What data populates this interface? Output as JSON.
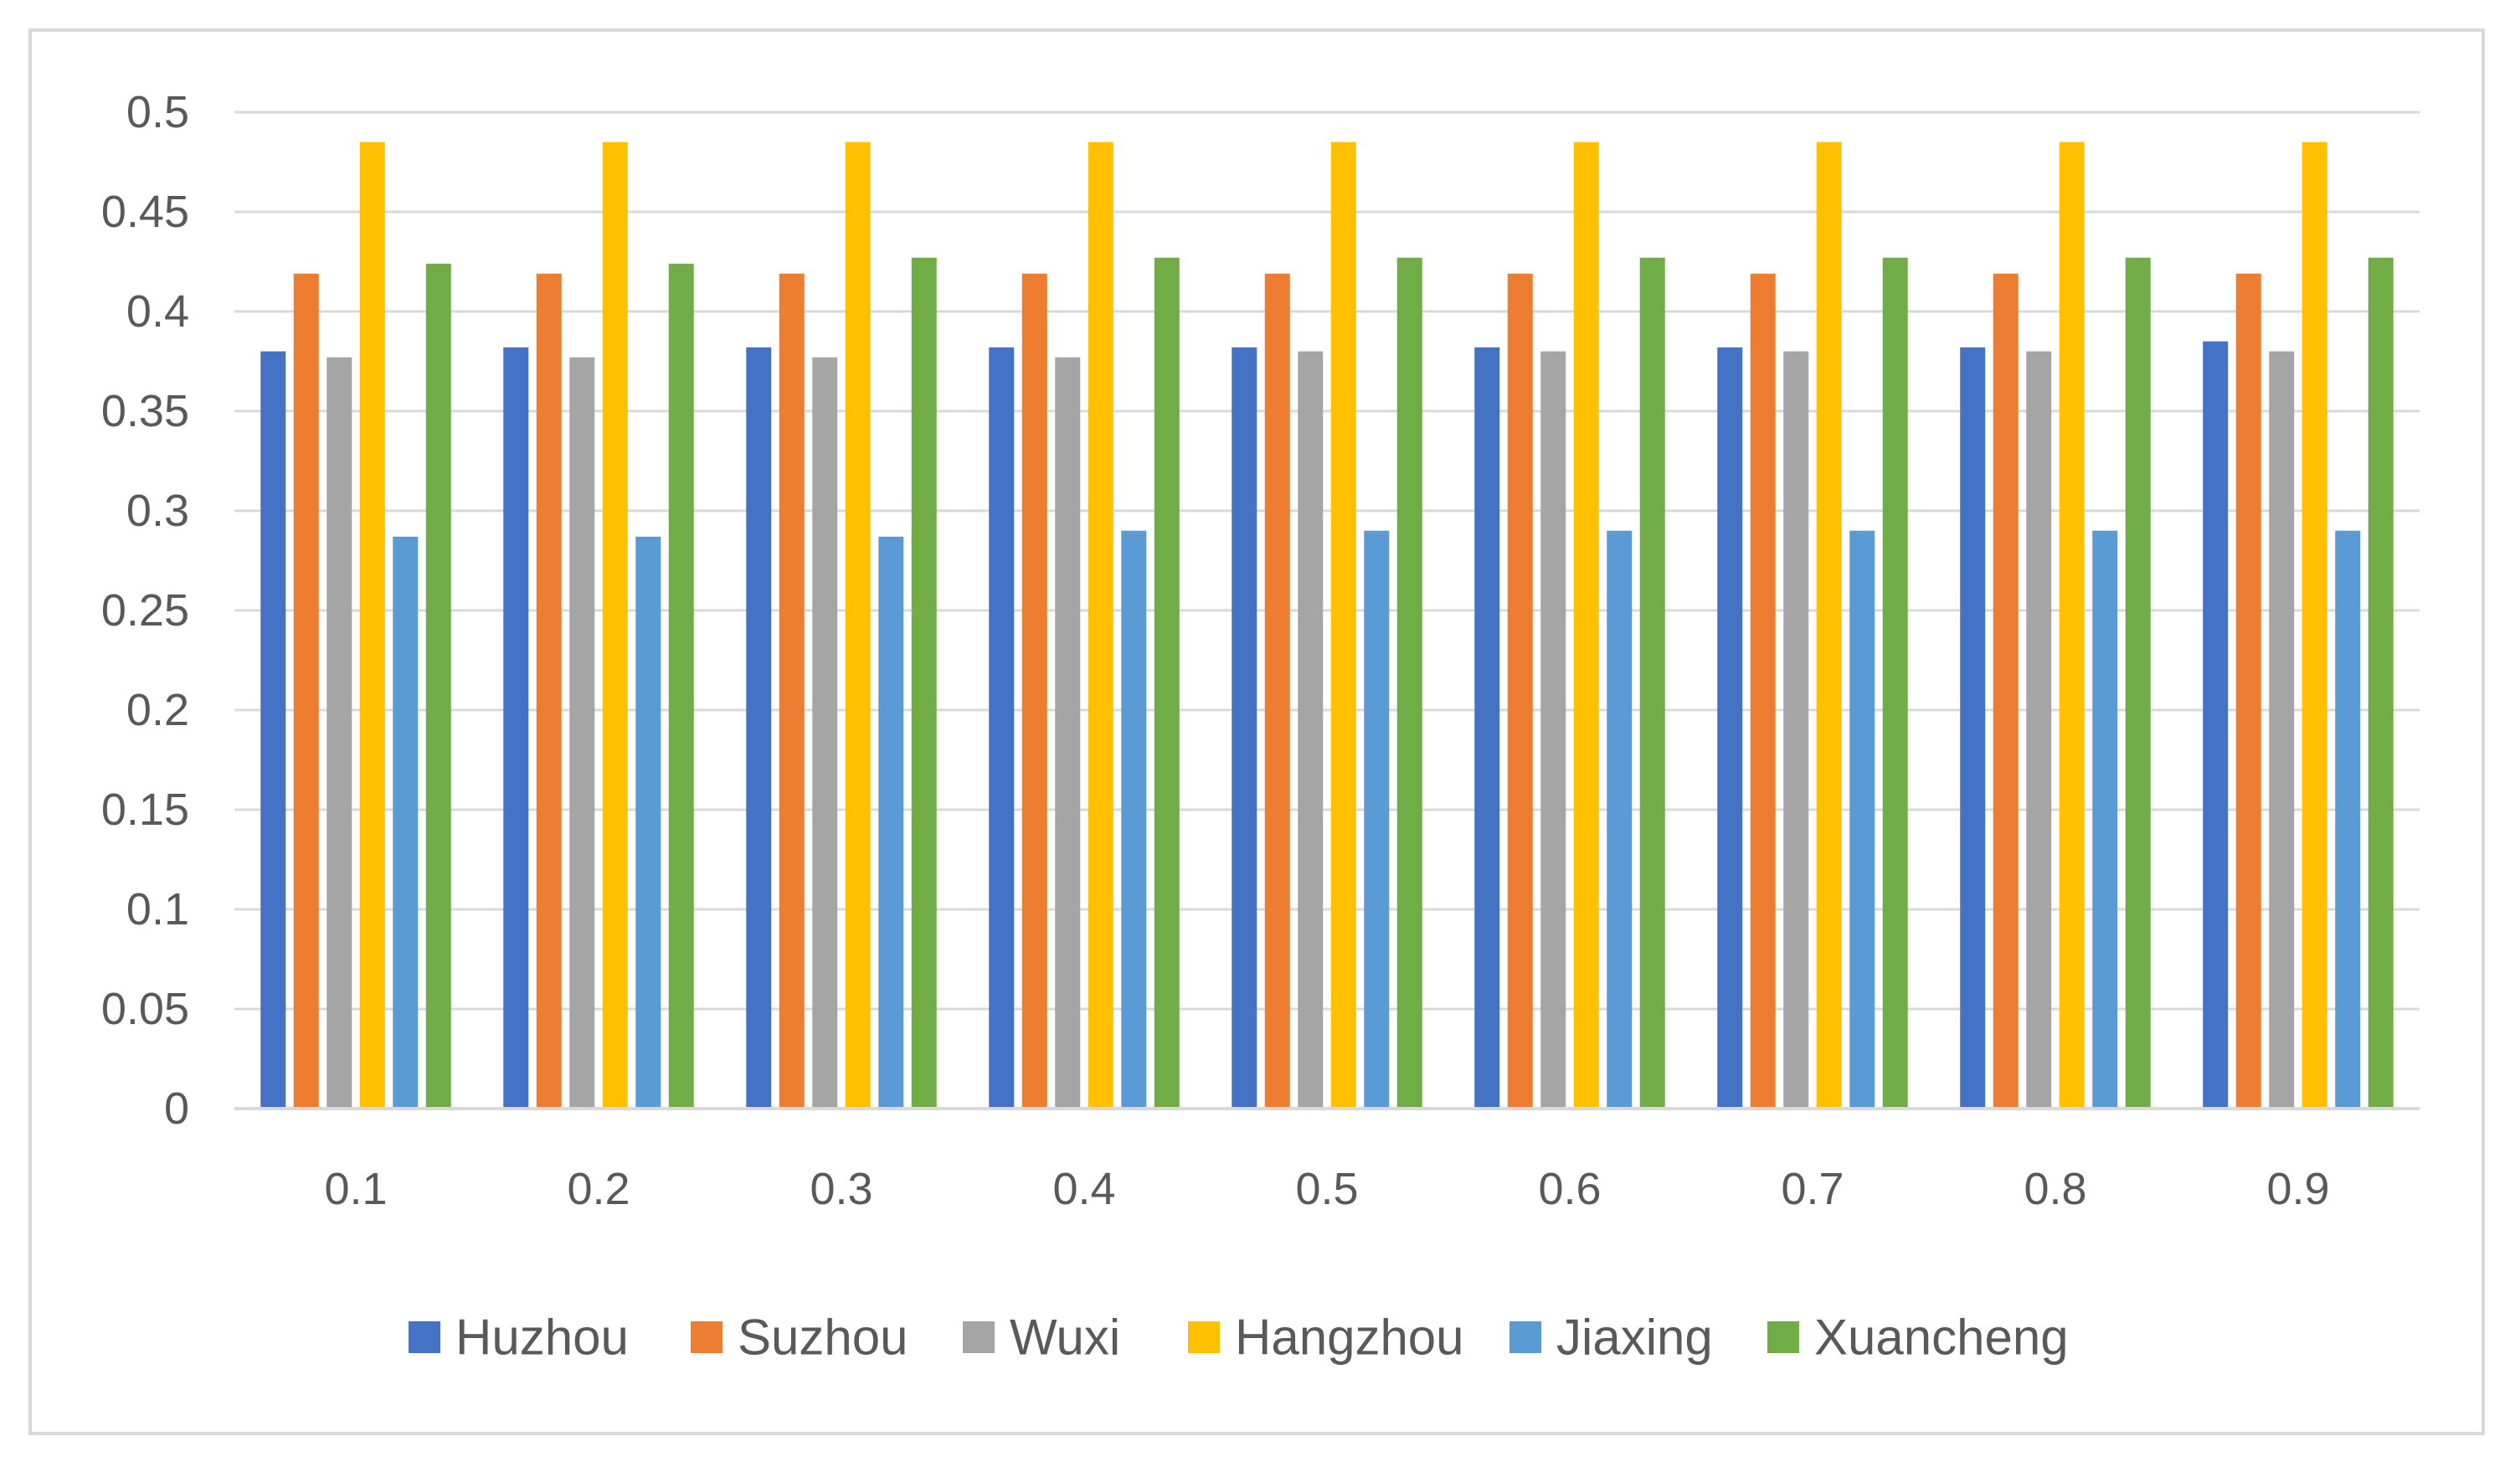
{
  "chart_data": {
    "type": "bar",
    "title": "",
    "xlabel": "",
    "ylabel": "",
    "categories": [
      "0.1",
      "0.2",
      "0.3",
      "0.4",
      "0.5",
      "0.6",
      "0.7",
      "0.8",
      "0.9"
    ],
    "ylim": [
      0,
      0.5
    ],
    "yticks": [
      "0",
      "0.05",
      "0.1",
      "0.15",
      "0.2",
      "0.25",
      "0.3",
      "0.35",
      "0.4",
      "0.45",
      "0.5"
    ],
    "grid": true,
    "legend_position": "bottom",
    "series": [
      {
        "name": "Huzhou",
        "color": "#4472c4",
        "values": [
          0.38,
          0.382,
          0.382,
          0.382,
          0.382,
          0.382,
          0.382,
          0.382,
          0.385
        ]
      },
      {
        "name": "Suzhou",
        "color": "#ed7d31",
        "values": [
          0.419,
          0.419,
          0.419,
          0.419,
          0.419,
          0.419,
          0.419,
          0.419,
          0.419
        ]
      },
      {
        "name": "Wuxi",
        "color": "#a5a5a5",
        "values": [
          0.377,
          0.377,
          0.377,
          0.377,
          0.38,
          0.38,
          0.38,
          0.38,
          0.38
        ]
      },
      {
        "name": "Hangzhou",
        "color": "#ffc000",
        "values": [
          0.485,
          0.485,
          0.485,
          0.485,
          0.485,
          0.485,
          0.485,
          0.485,
          0.485
        ]
      },
      {
        "name": "Jiaxing",
        "color": "#5b9bd5",
        "values": [
          0.287,
          0.287,
          0.287,
          0.29,
          0.29,
          0.29,
          0.29,
          0.29,
          0.29
        ]
      },
      {
        "name": "Xuancheng",
        "color": "#70ad47",
        "values": [
          0.424,
          0.424,
          0.427,
          0.427,
          0.427,
          0.427,
          0.427,
          0.427,
          0.427
        ]
      }
    ]
  }
}
